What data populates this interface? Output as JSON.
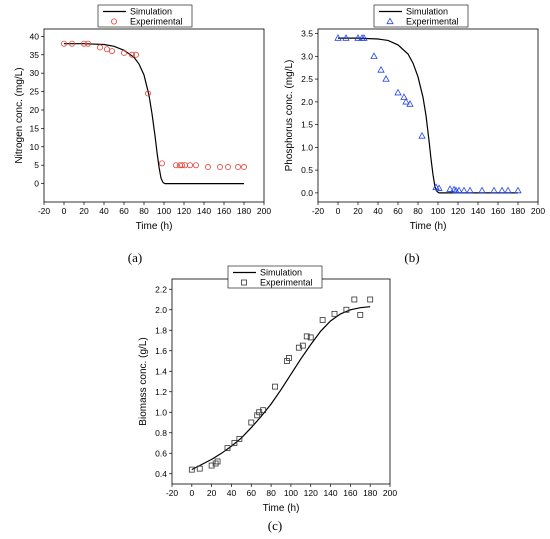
{
  "chart_data": [
    {
      "type": "scatter",
      "caption": "(a)",
      "xlabel": "Time (h)",
      "ylabel": "Nitrogen conc. (mg/L)",
      "xlim": [
        -20,
        200
      ],
      "ylim": [
        -5,
        42
      ],
      "xticks": [
        -20,
        0,
        20,
        40,
        60,
        80,
        100,
        120,
        140,
        160,
        180,
        200
      ],
      "yticks": [
        0,
        5,
        10,
        15,
        20,
        25,
        30,
        35,
        40
      ],
      "grid": false,
      "legend_position": "top-center",
      "series": [
        {
          "name": "Simulation",
          "kind": "line",
          "color": "#000000",
          "x": [
            0,
            20,
            40,
            50,
            60,
            70,
            75,
            80,
            85,
            88,
            91,
            93,
            95,
            97,
            99,
            101,
            103,
            180
          ],
          "y": [
            38,
            38,
            37.8,
            37.3,
            36.2,
            34.3,
            32.5,
            29.5,
            24,
            19,
            13,
            8.5,
            4.5,
            1.5,
            0.3,
            0,
            0,
            0
          ]
        },
        {
          "name": "Experimental",
          "kind": "marker",
          "marker": "circle",
          "color": "#e8423a",
          "x": [
            0,
            8,
            20,
            24,
            36,
            43,
            48,
            60,
            68,
            72,
            84,
            98,
            112,
            116,
            118,
            121,
            126,
            132,
            144,
            156,
            164,
            174,
            180
          ],
          "y": [
            38,
            38,
            38,
            38,
            37,
            36.5,
            36,
            35.5,
            35,
            35,
            24.5,
            5.5,
            5,
            5,
            5,
            5,
            5,
            5,
            4.5,
            4.5,
            4.5,
            4.5,
            4.5
          ]
        }
      ]
    },
    {
      "type": "scatter",
      "caption": "(b)",
      "xlabel": "Time (h)",
      "ylabel": "Phosphorus conc. (mg/L)",
      "xlim": [
        -20,
        200
      ],
      "ylim": [
        -0.2,
        3.6
      ],
      "xticks": [
        -20,
        0,
        20,
        40,
        60,
        80,
        100,
        120,
        140,
        160,
        180,
        200
      ],
      "yticks": [
        0.0,
        0.5,
        1.0,
        1.5,
        2.0,
        2.5,
        3.0,
        3.5
      ],
      "grid": false,
      "legend_position": "top-center",
      "series": [
        {
          "name": "Simulation",
          "kind": "line",
          "color": "#000000",
          "x": [
            0,
            20,
            40,
            50,
            60,
            70,
            75,
            80,
            85,
            88,
            91,
            93,
            95,
            97,
            99,
            101,
            103,
            180
          ],
          "y": [
            3.4,
            3.4,
            3.38,
            3.35,
            3.25,
            3.05,
            2.85,
            2.55,
            2.1,
            1.7,
            1.15,
            0.75,
            0.4,
            0.13,
            0.03,
            0,
            0,
            0
          ]
        },
        {
          "name": "Experimental",
          "kind": "marker",
          "marker": "triangle",
          "color": "#2244ee",
          "x": [
            0,
            8,
            20,
            24,
            26,
            36,
            43,
            48,
            60,
            66,
            68,
            72,
            84,
            98,
            101,
            112,
            116,
            118,
            121,
            126,
            132,
            144,
            156,
            164,
            170,
            180
          ],
          "y": [
            3.4,
            3.4,
            3.4,
            3.4,
            3.4,
            3.0,
            2.7,
            2.5,
            2.2,
            2.1,
            2.0,
            1.95,
            1.25,
            0.12,
            0.1,
            0.08,
            0.07,
            0.05,
            0.05,
            0.05,
            0.05,
            0.05,
            0.05,
            0.05,
            0.05,
            0.05
          ]
        }
      ]
    },
    {
      "type": "scatter",
      "caption": "(c)",
      "xlabel": "Time (h)",
      "ylabel": "Biomass conc. (g/L)",
      "xlim": [
        -20,
        200
      ],
      "ylim": [
        0.3,
        2.3
      ],
      "xticks": [
        -20,
        0,
        20,
        40,
        60,
        80,
        100,
        120,
        140,
        160,
        180,
        200
      ],
      "yticks": [
        0.4,
        0.6,
        0.8,
        1.0,
        1.2,
        1.4,
        1.6,
        1.8,
        2.0,
        2.2
      ],
      "grid": false,
      "legend_position": "top-center",
      "series": [
        {
          "name": "Simulation",
          "kind": "line",
          "color": "#000000",
          "x": [
            0,
            10,
            20,
            30,
            40,
            50,
            60,
            70,
            80,
            90,
            100,
            110,
            120,
            130,
            140,
            150,
            160,
            170,
            180
          ],
          "y": [
            0.44,
            0.49,
            0.54,
            0.6,
            0.67,
            0.75,
            0.85,
            0.96,
            1.08,
            1.22,
            1.37,
            1.52,
            1.66,
            1.79,
            1.89,
            1.96,
            2.0,
            2.02,
            2.03
          ]
        },
        {
          "name": "Experimental",
          "kind": "marker",
          "marker": "square",
          "color": "#333333",
          "x": [
            0,
            8,
            20,
            24,
            26,
            36,
            43,
            48,
            60,
            66,
            68,
            72,
            84,
            96,
            98,
            108,
            112,
            116,
            120,
            132,
            144,
            156,
            164,
            170,
            180
          ],
          "y": [
            0.44,
            0.45,
            0.48,
            0.5,
            0.52,
            0.65,
            0.7,
            0.74,
            0.9,
            0.97,
            1.0,
            1.02,
            1.25,
            1.5,
            1.53,
            1.63,
            1.65,
            1.74,
            1.73,
            1.9,
            1.96,
            2.0,
            2.1,
            1.95,
            2.1
          ]
        }
      ]
    }
  ]
}
